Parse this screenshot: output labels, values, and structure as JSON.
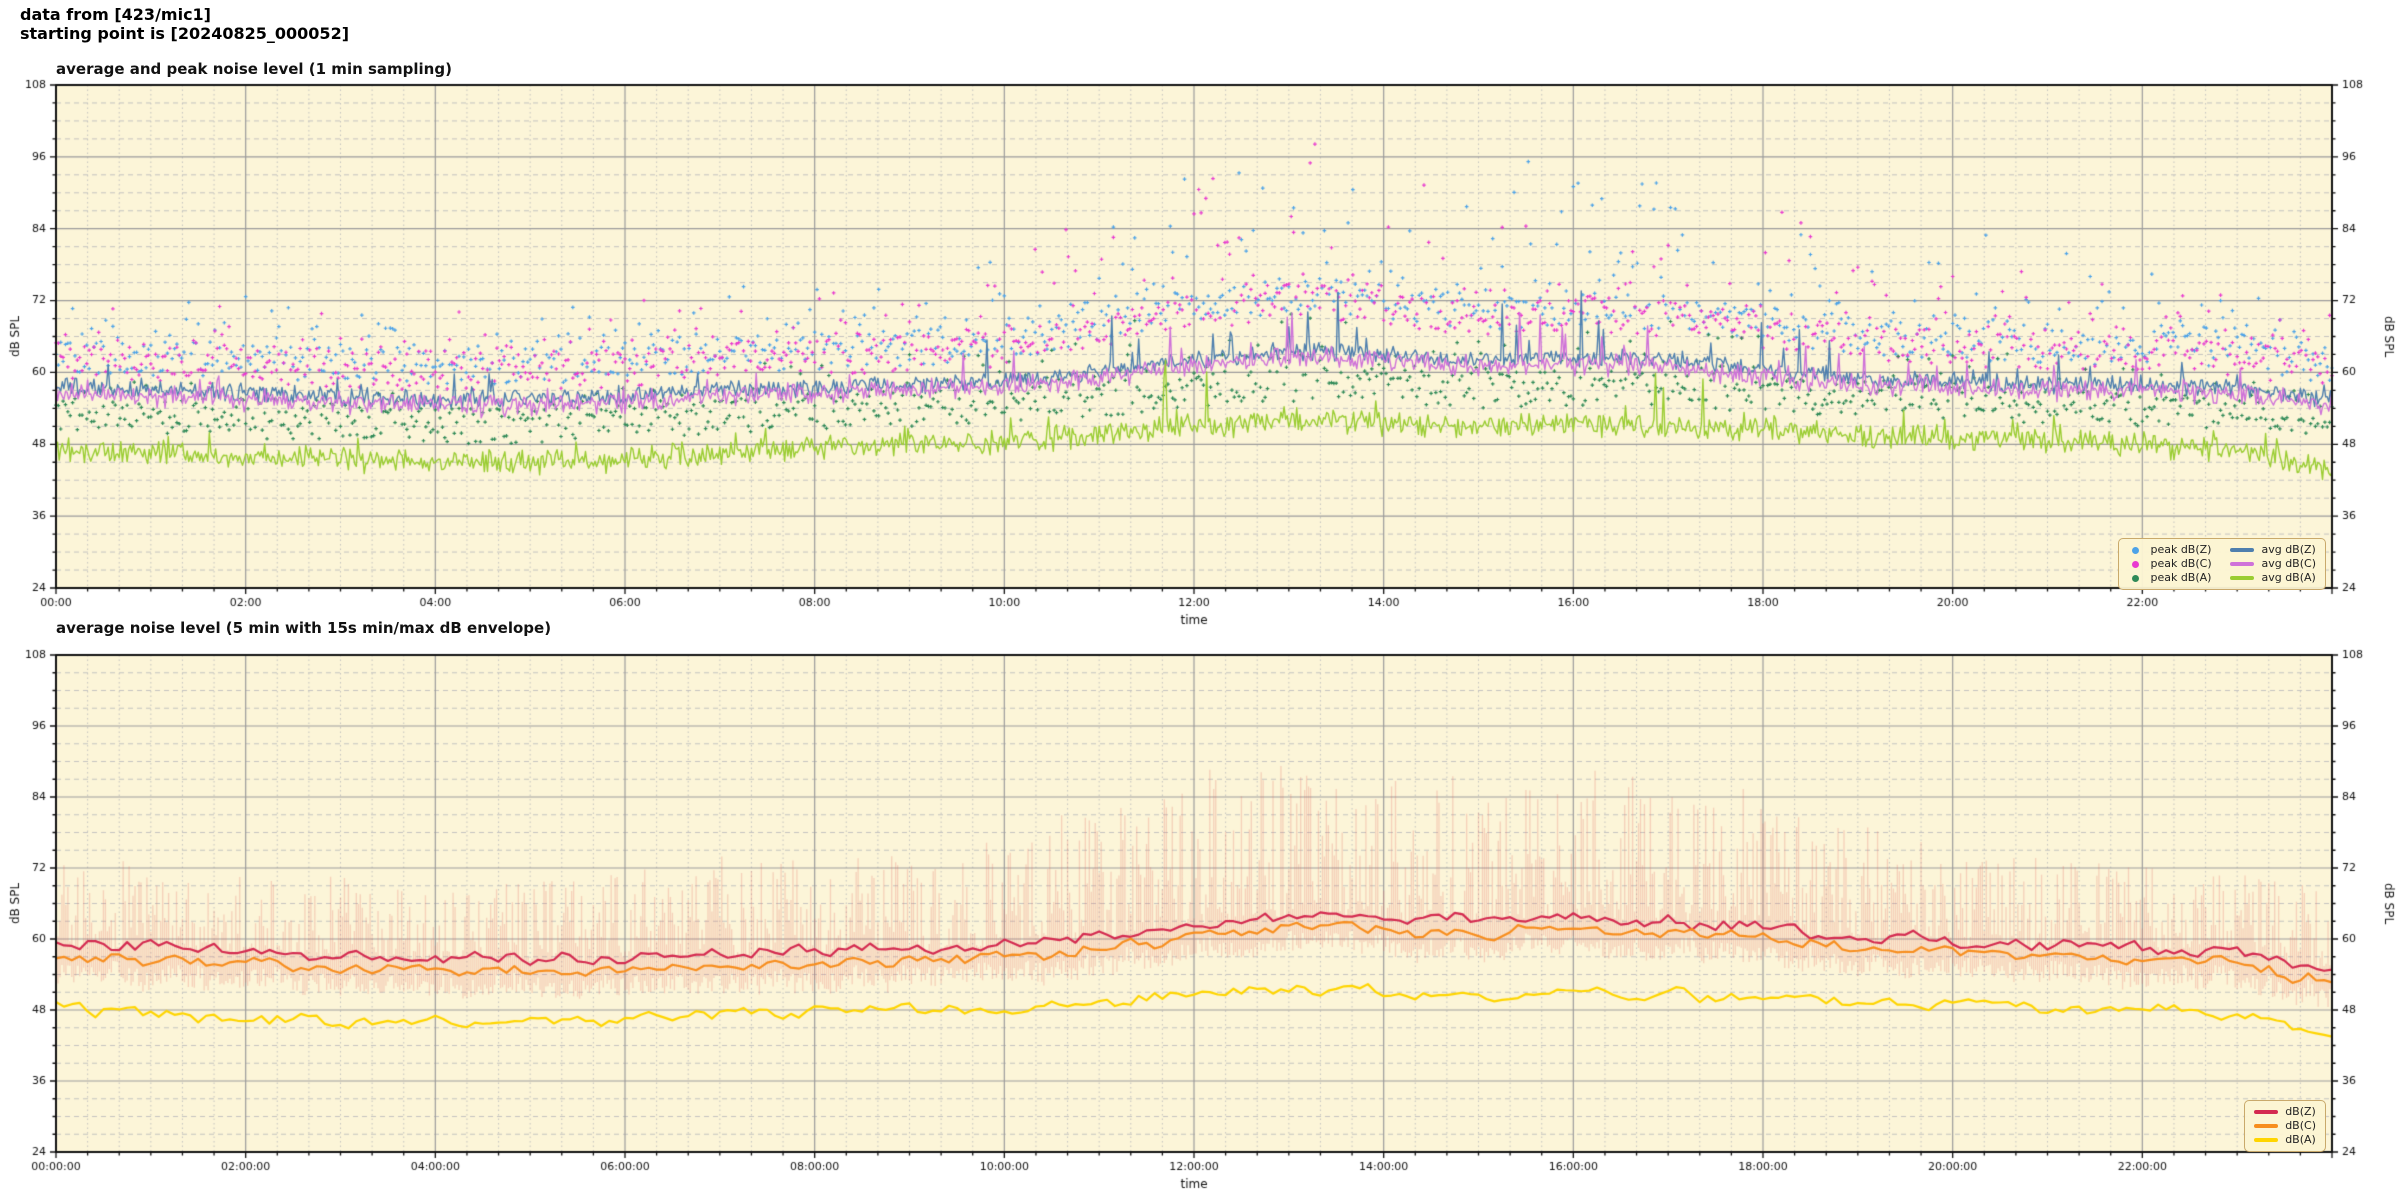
{
  "header": {
    "line1": "data from [423/mic1]",
    "line2": "starting point is [20240825_000052]"
  },
  "palette": {
    "plot_background": "#fcf5d8",
    "grid_major": "#9b9b9b",
    "grid_minor": "#bdbdbd",
    "axis_spine": "#111111",
    "peak_dbz": "#4da3e8",
    "peak_dbc": "#e93ad0",
    "peak_dba": "#2f8a57",
    "avg_dbz": "#4e7fae",
    "avg_dbc": "#cf72d9",
    "avg_dba": "#9acd32",
    "dbz": "#d42a50",
    "dbc": "#f78e1e",
    "dba": "#ffd500",
    "envelope": "rgba(228,105,98,0.26)"
  },
  "chart_data": [
    {
      "type": "line",
      "subtype": "line+scatter time series",
      "title": "average and peak noise level (1 min sampling)",
      "xlabel": "time",
      "ylabel_left": "dB SPL",
      "ylabel_right": "dB SPL",
      "ylim": [
        24,
        108
      ],
      "y_major_ticks": [
        24,
        36,
        48,
        60,
        72,
        84,
        96,
        108
      ],
      "y_minor_step_db": 3,
      "x_range_hours": [
        0,
        24
      ],
      "x_major_tick_hours": [
        0,
        2,
        4,
        6,
        8,
        10,
        12,
        14,
        16,
        18,
        20,
        22
      ],
      "x_major_tick_labels": [
        "00:00",
        "02:00",
        "04:00",
        "06:00",
        "08:00",
        "10:00",
        "12:00",
        "14:00",
        "16:00",
        "18:00",
        "20:00",
        "22:00"
      ],
      "x_minor_step_minutes": 20,
      "grid": "major solid gray, minor dashed/dotted light gray",
      "legend_position": "lower right",
      "activity_hourly": [
        0,
        0,
        0,
        0,
        0,
        0,
        0,
        0.1,
        0.2,
        0.3,
        0.5,
        0.8,
        1,
        1,
        0.95,
        0.9,
        1,
        0.9,
        0.8,
        0.5,
        0.3,
        0.2,
        0.2,
        0.1,
        0
      ],
      "series": [
        {
          "name": "peak dB(Z)",
          "kind": "scatter",
          "color": "#4da3e8",
          "sample_minutes": 1.5,
          "spread_db": 6,
          "spike_max_db": 16,
          "hourly_typical": [
            63,
            62.5,
            62,
            61.5,
            61,
            61,
            61.5,
            63,
            63.5,
            64,
            65,
            68,
            71,
            73,
            72,
            70,
            71,
            70,
            68,
            66,
            65,
            64.5,
            64,
            63.5,
            61
          ]
        },
        {
          "name": "peak dB(C)",
          "kind": "scatter",
          "color": "#e93ad0",
          "sample_minutes": 1.5,
          "spread_db": 6,
          "spike_max_db": 16,
          "hourly_typical": [
            62,
            61.5,
            61,
            60.5,
            60,
            60,
            60.5,
            62,
            62.5,
            63,
            64,
            67,
            70,
            72,
            71,
            69,
            70,
            69,
            67,
            65,
            64,
            63.5,
            63,
            62.5,
            60
          ]
        },
        {
          "name": "peak dB(A)",
          "kind": "scatter",
          "color": "#2f8a57",
          "sample_minutes": 1.5,
          "spread_db": 6,
          "spike_max_db": 9,
          "hourly_typical": [
            53,
            52.5,
            52,
            51.5,
            51,
            51,
            51.5,
            52.5,
            53.5,
            54,
            54.5,
            55.5,
            57,
            58,
            57.5,
            57,
            57.5,
            57,
            56.5,
            55.5,
            55,
            54.5,
            54,
            53,
            51.5
          ]
        },
        {
          "name": "avg dB(Z)",
          "kind": "line",
          "color": "#4e7fae",
          "width": 1.4,
          "sample_minutes": 1,
          "jitter_db": 1.8,
          "spike_db": 8,
          "hourly_values": [
            57.5,
            57,
            56.5,
            56,
            55.5,
            55.5,
            56,
            57,
            57.5,
            58,
            58.5,
            60,
            62,
            63.5,
            63,
            62,
            62.5,
            62,
            60.5,
            59,
            58.5,
            58,
            58,
            57.5,
            55.5
          ]
        },
        {
          "name": "avg dB(C)",
          "kind": "line",
          "color": "#cf72d9",
          "width": 1.4,
          "sample_minutes": 1,
          "jitter_db": 2.2,
          "spike_db": 7,
          "hourly_values": [
            56.5,
            56,
            55.5,
            55,
            54.5,
            54.5,
            55,
            56,
            56.5,
            57,
            57.5,
            59,
            61,
            62.5,
            62,
            61,
            61.5,
            61,
            59.5,
            58,
            57.5,
            57,
            57,
            56.5,
            54.5
          ]
        },
        {
          "name": "avg dB(A)",
          "kind": "line",
          "color": "#9acd32",
          "width": 1.4,
          "sample_minutes": 1,
          "jitter_db": 2.4,
          "spike_db": 7,
          "hourly_values": [
            47,
            46.5,
            46,
            45.5,
            45,
            45,
            45.5,
            46.5,
            47.5,
            48,
            48.5,
            49.5,
            51,
            52,
            51.5,
            51,
            51.5,
            51,
            50.5,
            49.5,
            49,
            48.5,
            48,
            47,
            44
          ]
        }
      ],
      "legend": {
        "entries": [
          {
            "label": "peak dB(Z)",
            "marker": "dot",
            "color": "#4da3e8"
          },
          {
            "label": "peak dB(C)",
            "marker": "dot",
            "color": "#e93ad0"
          },
          {
            "label": "peak dB(A)",
            "marker": "dot",
            "color": "#2f8a57"
          },
          {
            "label": "avg dB(Z)",
            "marker": "line",
            "color": "#4e7fae"
          },
          {
            "label": "avg dB(C)",
            "marker": "line",
            "color": "#cf72d9"
          },
          {
            "label": "avg dB(A)",
            "marker": "line",
            "color": "#9acd32"
          }
        ]
      }
    },
    {
      "type": "line",
      "subtype": "line time series with min/max envelope",
      "title": "average noise level (5 min with 15s min/max dB envelope)",
      "xlabel": "time",
      "ylabel_left": "dB SPL",
      "ylabel_right": "dB SPL",
      "ylim": [
        24,
        108
      ],
      "y_major_ticks": [
        24,
        36,
        48,
        60,
        72,
        84,
        96,
        108
      ],
      "y_minor_step_db": 3,
      "x_range_hours": [
        0,
        24
      ],
      "x_major_tick_hours": [
        0,
        2,
        4,
        6,
        8,
        10,
        12,
        14,
        16,
        18,
        20,
        22
      ],
      "x_major_tick_labels": [
        "00:00:00",
        "02:00:00",
        "04:00:00",
        "06:00:00",
        "08:00:00",
        "10:00:00",
        "12:00:00",
        "14:00:00",
        "16:00:00",
        "18:00:00",
        "20:00:00",
        "22:00:00"
      ],
      "x_minor_step_minutes": 20,
      "grid": "major solid gray, minor dashed/dotted light gray",
      "legend_position": "lower right",
      "activity_hourly": [
        0,
        0,
        0,
        0,
        0,
        0,
        0,
        0.1,
        0.2,
        0.3,
        0.5,
        0.8,
        1,
        1,
        0.95,
        0.9,
        1,
        0.9,
        0.8,
        0.5,
        0.3,
        0.2,
        0.2,
        0.1,
        0
      ],
      "series": [
        {
          "name": "15s min/max envelope",
          "kind": "envelope",
          "color": "rgba(228,105,98,0.26)",
          "sample_seconds": 75,
          "max_of": "dB(Z)",
          "min_of": "dB(C)",
          "min_offset_db": -3.5,
          "hourly_max": [
            72,
            71,
            70,
            69,
            68,
            69,
            71,
            72,
            73,
            74,
            76,
            81,
            85,
            88,
            86,
            84,
            86,
            84,
            82,
            77,
            74,
            73,
            72,
            70,
            68
          ]
        },
        {
          "name": "dB(Z)",
          "kind": "line",
          "color": "#d42a50",
          "width": 2.2,
          "sample_minutes": 5,
          "jitter_db": 2.6,
          "smooth": 0.5,
          "hourly_values": [
            59,
            58.5,
            58,
            57,
            56.5,
            56.5,
            57,
            57.5,
            58,
            58.5,
            59,
            60.5,
            62.5,
            64.5,
            63.5,
            63,
            63.5,
            63,
            62,
            60.5,
            59.5,
            59,
            58.5,
            57.5,
            54.5
          ]
        },
        {
          "name": "dB(C)",
          "kind": "line",
          "color": "#f78e1e",
          "width": 2.2,
          "sample_minutes": 5,
          "jitter_db": 2.4,
          "smooth": 0.5,
          "hourly_values": [
            57,
            56.5,
            56,
            55,
            54.5,
            54.5,
            55,
            55.5,
            56,
            56.5,
            57,
            58.5,
            60.5,
            62.5,
            61.5,
            61,
            61.5,
            61,
            60,
            58.5,
            57.5,
            57,
            56.5,
            55.5,
            52.5
          ]
        },
        {
          "name": "dB(A)",
          "kind": "line",
          "color": "#ffd500",
          "width": 2.2,
          "sample_minutes": 5,
          "jitter_db": 2.6,
          "smooth": 0.5,
          "hourly_values": [
            48,
            47.5,
            46.5,
            46,
            46,
            46,
            46.5,
            47,
            48,
            48,
            48.5,
            49.5,
            50.5,
            51.5,
            51,
            50.5,
            51,
            50.5,
            50,
            49.5,
            49,
            48.5,
            48,
            47,
            44
          ]
        }
      ],
      "legend": {
        "entries": [
          {
            "label": "dB(Z)",
            "marker": "line",
            "color": "#d42a50"
          },
          {
            "label": "dB(C)",
            "marker": "line",
            "color": "#f78e1e"
          },
          {
            "label": "dB(A)",
            "marker": "line",
            "color": "#ffd500"
          }
        ]
      }
    }
  ]
}
